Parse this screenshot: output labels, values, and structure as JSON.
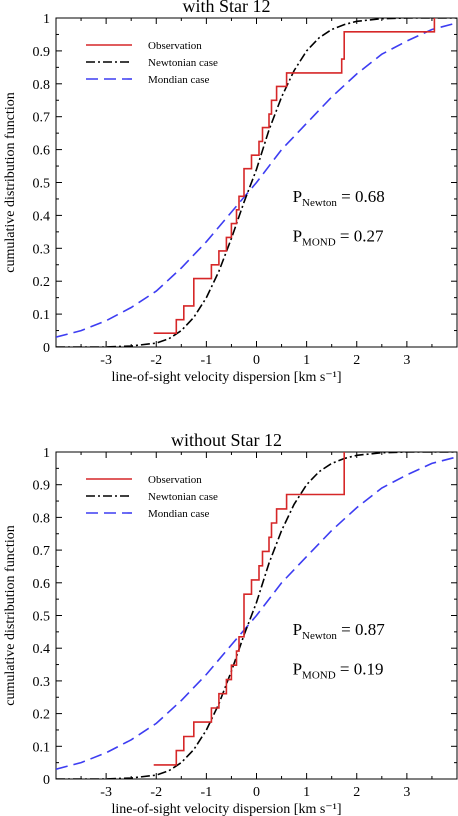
{
  "chart_data": [
    {
      "type": "line",
      "title": "with Star 12",
      "xlabel": "line-of-sight velocity dispersion [km s⁻¹]",
      "ylabel": "cumulative distribution function",
      "xlim": [
        -4,
        4
      ],
      "ylim": [
        0,
        1
      ],
      "x_ticks": [
        "-3",
        "-2",
        "-1",
        "0",
        "1",
        "2",
        "3"
      ],
      "y_ticks": [
        "0",
        "0.1",
        "0.2",
        "0.3",
        "0.4",
        "0.5",
        "0.6",
        "0.7",
        "0.8",
        "0.9",
        "1"
      ],
      "legend_position": "top-left",
      "grid": false,
      "annotations": [
        {
          "main": "P",
          "sub": "Newton",
          "value": " = 0.68"
        },
        {
          "main": "P",
          "sub": "MOND",
          "value": " = 0.27"
        }
      ],
      "series": [
        {
          "name": "Observation",
          "color": "#d62728",
          "style": "solid",
          "x": [
            -2.05,
            -1.6,
            -1.6,
            -1.45,
            -1.45,
            -1.25,
            -1.25,
            -0.9,
            -0.9,
            -0.75,
            -0.75,
            -0.6,
            -0.6,
            -0.5,
            -0.5,
            -0.4,
            -0.4,
            -0.35,
            -0.35,
            -0.25,
            -0.25,
            -0.1,
            -0.1,
            0.05,
            0.05,
            0.12,
            0.12,
            0.25,
            0.25,
            0.3,
            0.3,
            0.4,
            0.4,
            0.5,
            0.5,
            0.6,
            0.6,
            0.65,
            0.65,
            1.7,
            1.7,
            1.75,
            1.75,
            3.55,
            3.55
          ],
          "y": [
            0.042,
            0.042,
            0.083,
            0.083,
            0.125,
            0.125,
            0.208,
            0.208,
            0.25,
            0.25,
            0.292,
            0.292,
            0.333,
            0.333,
            0.375,
            0.375,
            0.417,
            0.417,
            0.458,
            0.458,
            0.542,
            0.542,
            0.583,
            0.583,
            0.625,
            0.625,
            0.667,
            0.667,
            0.708,
            0.708,
            0.75,
            0.75,
            0.792,
            0.792,
            0.792,
            0.792,
            0.833,
            0.833,
            0.833,
            0.833,
            0.875,
            0.875,
            0.958,
            0.958,
            1.0
          ]
        },
        {
          "name": "Newtonian case",
          "color": "#000000",
          "style": "dashdot",
          "x": [
            -4,
            -3,
            -2.5,
            -2.0,
            -1.75,
            -1.5,
            -1.25,
            -1.0,
            -0.75,
            -0.5,
            -0.25,
            0,
            0.25,
            0.5,
            0.75,
            1.0,
            1.25,
            1.5,
            1.75,
            2.0,
            2.5,
            3.0,
            4.0
          ],
          "y": [
            0.0,
            0.0,
            0.003,
            0.012,
            0.025,
            0.05,
            0.09,
            0.15,
            0.23,
            0.33,
            0.44,
            0.54,
            0.66,
            0.76,
            0.84,
            0.9,
            0.94,
            0.965,
            0.98,
            0.99,
            0.998,
            1.0,
            1.0
          ]
        },
        {
          "name": "Mondian case",
          "color": "#3d3df2",
          "style": "dashed",
          "x": [
            -4,
            -3.5,
            -3,
            -2.5,
            -2,
            -1.5,
            -1,
            -0.5,
            0,
            0.5,
            1,
            1.5,
            2,
            2.5,
            3,
            3.5,
            4
          ],
          "y": [
            0.03,
            0.05,
            0.08,
            0.12,
            0.17,
            0.24,
            0.32,
            0.41,
            0.5,
            0.6,
            0.68,
            0.76,
            0.83,
            0.89,
            0.93,
            0.965,
            0.985
          ]
        }
      ]
    },
    {
      "type": "line",
      "title": "without Star 12",
      "xlabel": "line-of-sight velocity dispersion [km s⁻¹]",
      "ylabel": "cumulative distribution function",
      "xlim": [
        -4,
        4
      ],
      "ylim": [
        0,
        1
      ],
      "x_ticks": [
        "-3",
        "-2",
        "-1",
        "0",
        "1",
        "2",
        "3"
      ],
      "y_ticks": [
        "0",
        "0.1",
        "0.2",
        "0.3",
        "0.4",
        "0.5",
        "0.6",
        "0.7",
        "0.8",
        "0.9",
        "1"
      ],
      "legend_position": "top-left",
      "grid": false,
      "annotations": [
        {
          "main": "P",
          "sub": "Newton",
          "value": " = 0.87"
        },
        {
          "main": "P",
          "sub": "MOND",
          "value": " = 0.19"
        }
      ],
      "series": [
        {
          "name": "Observation",
          "color": "#d62728",
          "style": "solid",
          "x": [
            -2.05,
            -1.6,
            -1.6,
            -1.45,
            -1.45,
            -1.25,
            -1.25,
            -0.9,
            -0.9,
            -0.75,
            -0.75,
            -0.6,
            -0.6,
            -0.5,
            -0.5,
            -0.4,
            -0.4,
            -0.35,
            -0.35,
            -0.25,
            -0.25,
            -0.1,
            -0.1,
            0.05,
            0.05,
            0.12,
            0.12,
            0.25,
            0.25,
            0.3,
            0.3,
            0.4,
            0.4,
            0.5,
            0.5,
            0.6,
            0.6,
            0.65,
            0.65,
            1.75,
            1.75
          ],
          "y": [
            0.043,
            0.043,
            0.087,
            0.087,
            0.13,
            0.13,
            0.174,
            0.174,
            0.217,
            0.217,
            0.261,
            0.261,
            0.304,
            0.304,
            0.348,
            0.348,
            0.391,
            0.391,
            0.435,
            0.435,
            0.565,
            0.565,
            0.609,
            0.609,
            0.652,
            0.652,
            0.696,
            0.696,
            0.739,
            0.739,
            0.783,
            0.783,
            0.826,
            0.826,
            0.826,
            0.826,
            0.87,
            0.87,
            0.87,
            0.87,
            1.0
          ]
        },
        {
          "name": "Newtonian case",
          "color": "#000000",
          "style": "dashdot",
          "x": [
            -4,
            -3,
            -2.5,
            -2.0,
            -1.75,
            -1.5,
            -1.25,
            -1.0,
            -0.75,
            -0.5,
            -0.25,
            0,
            0.25,
            0.5,
            0.75,
            1.0,
            1.25,
            1.5,
            1.75,
            2.0,
            2.5,
            3.0,
            4.0
          ],
          "y": [
            0.0,
            0.0,
            0.003,
            0.012,
            0.025,
            0.05,
            0.09,
            0.15,
            0.23,
            0.33,
            0.44,
            0.54,
            0.66,
            0.76,
            0.84,
            0.9,
            0.94,
            0.965,
            0.98,
            0.99,
            0.998,
            1.0,
            1.0
          ]
        },
        {
          "name": "Mondian case",
          "color": "#3d3df2",
          "style": "dashed",
          "x": [
            -4,
            -3.5,
            -3,
            -2.5,
            -2,
            -1.5,
            -1,
            -0.5,
            0,
            0.5,
            1,
            1.5,
            2,
            2.5,
            3,
            3.5,
            4
          ],
          "y": [
            0.03,
            0.05,
            0.08,
            0.12,
            0.17,
            0.24,
            0.32,
            0.41,
            0.5,
            0.6,
            0.68,
            0.76,
            0.83,
            0.89,
            0.93,
            0.965,
            0.985
          ]
        }
      ]
    }
  ]
}
